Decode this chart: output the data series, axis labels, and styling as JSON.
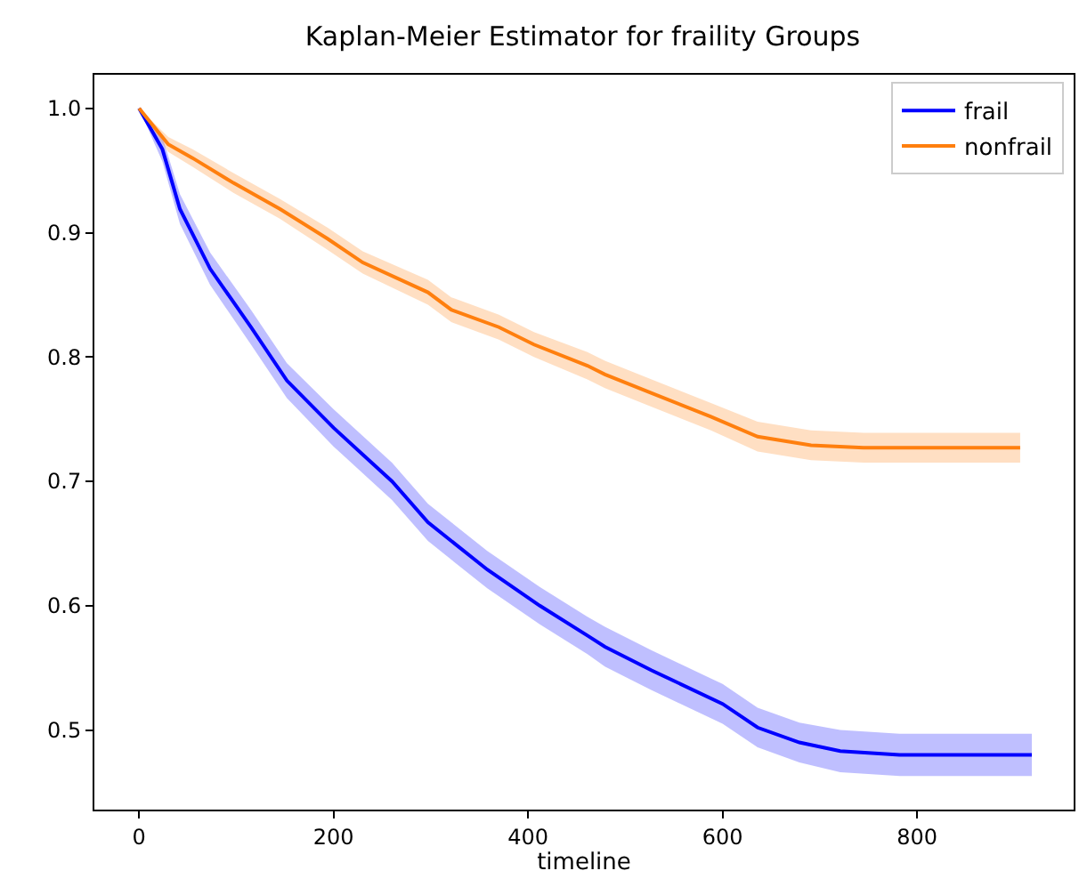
{
  "chart_data": {
    "type": "line",
    "title": "Kaplan-Meier Estimator for fraility Groups",
    "xlabel": "timeline",
    "xlim": [
      -46,
      961
    ],
    "ylim": [
      0.436,
      1.027
    ],
    "xticks": [
      0,
      200,
      400,
      600,
      800
    ],
    "yticks": [
      0.5,
      0.6,
      0.7,
      0.8,
      0.9,
      {
        "value": 1.0,
        "label": "1.0"
      }
    ],
    "grid": false,
    "legend": "top right",
    "line_style": "solid",
    "series": [
      {
        "name": "frail",
        "color": "#0000ff",
        "x": [
          0,
          24,
          42,
          73,
          115,
          152,
          200,
          260,
          297,
          358,
          412,
          461,
          479,
          527,
          600,
          636,
          679,
          721,
          782,
          918
        ],
        "values": [
          1.0,
          0.967,
          0.919,
          0.871,
          0.824,
          0.781,
          0.743,
          0.7,
          0.667,
          0.629,
          0.6,
          0.576,
          0.567,
          0.548,
          0.521,
          0.502,
          0.49,
          0.483,
          0.48,
          0.48
        ],
        "lower": [
          1.0,
          0.957,
          0.907,
          0.858,
          0.81,
          0.767,
          0.728,
          0.685,
          0.652,
          0.614,
          0.585,
          0.561,
          0.551,
          0.532,
          0.505,
          0.486,
          0.474,
          0.466,
          0.463,
          0.463
        ],
        "upper": [
          1.0,
          0.977,
          0.931,
          0.884,
          0.838,
          0.795,
          0.758,
          0.715,
          0.682,
          0.644,
          0.615,
          0.591,
          0.583,
          0.564,
          0.537,
          0.518,
          0.506,
          0.5,
          0.497,
          0.497
        ]
      },
      {
        "name": "nonfrail",
        "color": "#ff7f0e",
        "x": [
          0,
          30,
          55,
          97,
          145,
          194,
          230,
          297,
          321,
          370,
          406,
          461,
          479,
          527,
          588,
          636,
          691,
          745,
          906
        ],
        "values": [
          1.0,
          0.971,
          0.96,
          0.94,
          0.919,
          0.895,
          0.876,
          0.852,
          0.838,
          0.824,
          0.81,
          0.793,
          0.786,
          0.771,
          0.752,
          0.736,
          0.729,
          0.727,
          0.727
        ],
        "lower": [
          1.0,
          0.965,
          0.953,
          0.932,
          0.911,
          0.886,
          0.867,
          0.842,
          0.828,
          0.814,
          0.8,
          0.782,
          0.775,
          0.76,
          0.741,
          0.724,
          0.717,
          0.715,
          0.715
        ],
        "upper": [
          1.0,
          0.977,
          0.967,
          0.948,
          0.927,
          0.904,
          0.885,
          0.862,
          0.848,
          0.834,
          0.82,
          0.804,
          0.797,
          0.782,
          0.763,
          0.748,
          0.741,
          0.739,
          0.739
        ]
      }
    ]
  }
}
